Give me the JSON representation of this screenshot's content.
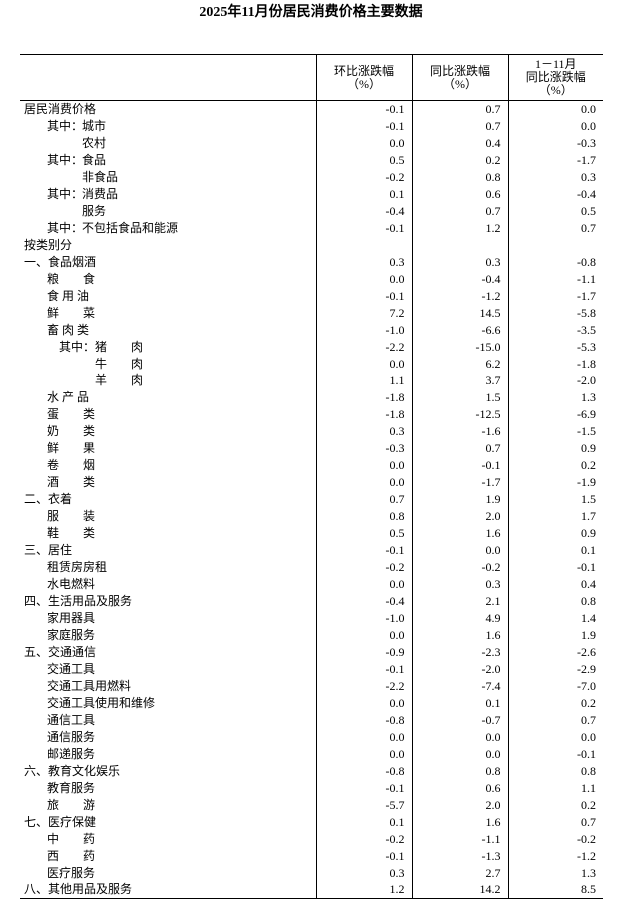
{
  "title": "2025年11月份居民消费价格主要数据",
  "headers": {
    "col1": [
      "环比涨跌幅",
      "（%）"
    ],
    "col2": [
      "同比涨跌幅",
      "（%）"
    ],
    "col3": [
      "1－11月",
      "同比涨跌幅",
      "（%）"
    ]
  },
  "rows": [
    {
      "label": "居民消费价格",
      "level": "l0",
      "values": [
        "-0.1",
        "0.7",
        "0.0"
      ]
    },
    {
      "prefix": "其中：",
      "label": "城市",
      "level": "l1p",
      "values": [
        "-0.1",
        "0.7",
        "0.0"
      ]
    },
    {
      "label": "农村",
      "level": "l2",
      "values": [
        "0.0",
        "0.4",
        "-0.3"
      ]
    },
    {
      "prefix": "其中：",
      "label": "食品",
      "level": "l1p",
      "values": [
        "0.5",
        "0.2",
        "-1.7"
      ]
    },
    {
      "label": "非食品",
      "level": "l2",
      "values": [
        "-0.2",
        "0.8",
        "0.3"
      ]
    },
    {
      "prefix": "其中：",
      "label": "消费品",
      "level": "l1p",
      "values": [
        "0.1",
        "0.6",
        "-0.4"
      ]
    },
    {
      "label": "服务",
      "level": "l2",
      "values": [
        "-0.4",
        "0.7",
        "0.5"
      ]
    },
    {
      "prefix": "其中：",
      "label": "不包括食品和能源",
      "level": "l1p",
      "values": [
        "-0.1",
        "1.2",
        "0.7"
      ]
    },
    {
      "label": "按类别分",
      "level": "l0",
      "values": [
        "",
        "",
        ""
      ]
    },
    {
      "label": "一、食品烟酒",
      "level": "l0",
      "values": [
        "0.3",
        "0.3",
        "-0.8"
      ]
    },
    {
      "label": "粮　　食",
      "level": "l1",
      "values": [
        "0.0",
        "-0.4",
        "-1.1"
      ]
    },
    {
      "label": "食 用 油",
      "level": "l1",
      "values": [
        "-0.1",
        "-1.2",
        "-1.7"
      ]
    },
    {
      "label": "鲜　　菜",
      "level": "l1",
      "values": [
        "7.2",
        "14.5",
        "-5.8"
      ]
    },
    {
      "label": "畜 肉 类",
      "level": "l1",
      "values": [
        "-1.0",
        "-6.6",
        "-3.5"
      ]
    },
    {
      "prefix": "其中：",
      "label": "猪　　肉",
      "level": "l3p",
      "values": [
        "-2.2",
        "-15.0",
        "-5.3"
      ]
    },
    {
      "label": "牛　　肉",
      "level": "l4",
      "values": [
        "0.0",
        "6.2",
        "-1.8"
      ]
    },
    {
      "label": "羊　　肉",
      "level": "l4",
      "values": [
        "1.1",
        "3.7",
        "-2.0"
      ]
    },
    {
      "label": "水 产 品",
      "level": "l1",
      "values": [
        "-1.8",
        "1.5",
        "1.3"
      ]
    },
    {
      "label": "蛋　　类",
      "level": "l1",
      "values": [
        "-1.8",
        "-12.5",
        "-6.9"
      ]
    },
    {
      "label": "奶　　类",
      "level": "l1",
      "values": [
        "0.3",
        "-1.6",
        "-1.5"
      ]
    },
    {
      "label": "鲜　　果",
      "level": "l1",
      "values": [
        "-0.3",
        "0.7",
        "0.9"
      ]
    },
    {
      "label": "卷　　烟",
      "level": "l1",
      "values": [
        "0.0",
        "-0.1",
        "0.2"
      ]
    },
    {
      "label": "酒　　类",
      "level": "l1",
      "values": [
        "0.0",
        "-1.7",
        "-1.9"
      ]
    },
    {
      "label": "二、衣着",
      "level": "l0",
      "values": [
        "0.7",
        "1.9",
        "1.5"
      ]
    },
    {
      "label": "服　　装",
      "level": "l1",
      "values": [
        "0.8",
        "2.0",
        "1.7"
      ]
    },
    {
      "label": "鞋　　类",
      "level": "l1",
      "values": [
        "0.5",
        "1.6",
        "0.9"
      ]
    },
    {
      "label": "三、居住",
      "level": "l0",
      "values": [
        "-0.1",
        "0.0",
        "0.1"
      ]
    },
    {
      "label": "租赁房房租",
      "level": "l1",
      "values": [
        "-0.2",
        "-0.2",
        "-0.1"
      ]
    },
    {
      "label": "水电燃料",
      "level": "l1",
      "values": [
        "0.0",
        "0.3",
        "0.4"
      ]
    },
    {
      "label": "四、生活用品及服务",
      "level": "l0",
      "values": [
        "-0.4",
        "2.1",
        "0.8"
      ]
    },
    {
      "label": "家用器具",
      "level": "l1",
      "values": [
        "-1.0",
        "4.9",
        "1.4"
      ]
    },
    {
      "label": "家庭服务",
      "level": "l1",
      "values": [
        "0.0",
        "1.6",
        "1.9"
      ]
    },
    {
      "label": "五、交通通信",
      "level": "l0",
      "values": [
        "-0.9",
        "-2.3",
        "-2.6"
      ]
    },
    {
      "label": "交通工具",
      "level": "l1",
      "values": [
        "-0.1",
        "-2.0",
        "-2.9"
      ]
    },
    {
      "label": "交通工具用燃料",
      "level": "l1",
      "values": [
        "-2.2",
        "-7.4",
        "-7.0"
      ]
    },
    {
      "label": "交通工具使用和维修",
      "level": "l1",
      "values": [
        "0.0",
        "0.1",
        "0.2"
      ]
    },
    {
      "label": "通信工具",
      "level": "l1",
      "values": [
        "-0.8",
        "-0.7",
        "0.7"
      ]
    },
    {
      "label": "通信服务",
      "level": "l1",
      "values": [
        "0.0",
        "0.0",
        "0.0"
      ]
    },
    {
      "label": "邮递服务",
      "level": "l1",
      "values": [
        "0.0",
        "0.0",
        "-0.1"
      ]
    },
    {
      "label": "六、教育文化娱乐",
      "level": "l0",
      "values": [
        "-0.8",
        "0.8",
        "0.8"
      ]
    },
    {
      "label": "教育服务",
      "level": "l1",
      "values": [
        "-0.1",
        "0.6",
        "1.1"
      ]
    },
    {
      "label": "旅　　游",
      "level": "l1",
      "values": [
        "-5.7",
        "2.0",
        "0.2"
      ]
    },
    {
      "label": "七、医疗保健",
      "level": "l0",
      "values": [
        "0.1",
        "1.6",
        "0.7"
      ]
    },
    {
      "label": "中　　药",
      "level": "l1",
      "values": [
        "-0.2",
        "-1.1",
        "-0.2"
      ]
    },
    {
      "label": "西　　药",
      "level": "l1",
      "values": [
        "-0.1",
        "-1.3",
        "-1.2"
      ]
    },
    {
      "label": "医疗服务",
      "level": "l1",
      "values": [
        "0.3",
        "2.7",
        "1.3"
      ]
    },
    {
      "label": "八、其他用品及服务",
      "level": "l0",
      "values": [
        "1.2",
        "14.2",
        "8.5"
      ]
    }
  ]
}
